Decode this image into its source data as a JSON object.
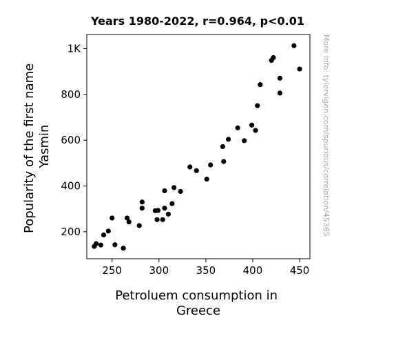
{
  "chart_data": {
    "type": "scatter",
    "title": "Years 1980-2022, r=0.964, p<0.01",
    "xlabel": [
      "Petroluem consumption in",
      "Greece"
    ],
    "ylabel": [
      "Popularity of the first name",
      "Yasmin"
    ],
    "credit": "More info: tylervigen.com/spurious/correlation/45365",
    "xlim": [
      223,
      461
    ],
    "ylim": [
      82,
      1062
    ],
    "xticks": [
      250,
      300,
      350,
      400,
      450
    ],
    "xtick_labels": [
      "250",
      "300",
      "350",
      "400",
      "450"
    ],
    "yticks": [
      200,
      400,
      600,
      800,
      1000
    ],
    "ytick_labels": [
      "200",
      "400",
      "600",
      "800",
      "1K"
    ],
    "grid": false,
    "marker_color": "#000000",
    "points": [
      {
        "x": 231,
        "y": 136
      },
      {
        "x": 233,
        "y": 148
      },
      {
        "x": 238,
        "y": 142
      },
      {
        "x": 241,
        "y": 186
      },
      {
        "x": 246,
        "y": 203
      },
      {
        "x": 250,
        "y": 260
      },
      {
        "x": 253,
        "y": 143
      },
      {
        "x": 262,
        "y": 128
      },
      {
        "x": 266,
        "y": 260
      },
      {
        "x": 268,
        "y": 243
      },
      {
        "x": 279,
        "y": 227
      },
      {
        "x": 282,
        "y": 330
      },
      {
        "x": 282,
        "y": 303
      },
      {
        "x": 296,
        "y": 292
      },
      {
        "x": 299,
        "y": 293
      },
      {
        "x": 298,
        "y": 253
      },
      {
        "x": 304,
        "y": 253
      },
      {
        "x": 306,
        "y": 303
      },
      {
        "x": 306,
        "y": 379
      },
      {
        "x": 310,
        "y": 277
      },
      {
        "x": 314,
        "y": 323
      },
      {
        "x": 316,
        "y": 393
      },
      {
        "x": 323,
        "y": 376
      },
      {
        "x": 333,
        "y": 483
      },
      {
        "x": 340,
        "y": 467
      },
      {
        "x": 351,
        "y": 430
      },
      {
        "x": 355,
        "y": 492
      },
      {
        "x": 368,
        "y": 572
      },
      {
        "x": 369,
        "y": 507
      },
      {
        "x": 374,
        "y": 604
      },
      {
        "x": 384,
        "y": 654
      },
      {
        "x": 391,
        "y": 598
      },
      {
        "x": 399,
        "y": 666
      },
      {
        "x": 403,
        "y": 643
      },
      {
        "x": 405,
        "y": 751
      },
      {
        "x": 408,
        "y": 843
      },
      {
        "x": 420,
        "y": 949
      },
      {
        "x": 422,
        "y": 961
      },
      {
        "x": 429,
        "y": 871
      },
      {
        "x": 429,
        "y": 806
      },
      {
        "x": 444,
        "y": 1013
      },
      {
        "x": 450,
        "y": 911
      }
    ]
  }
}
